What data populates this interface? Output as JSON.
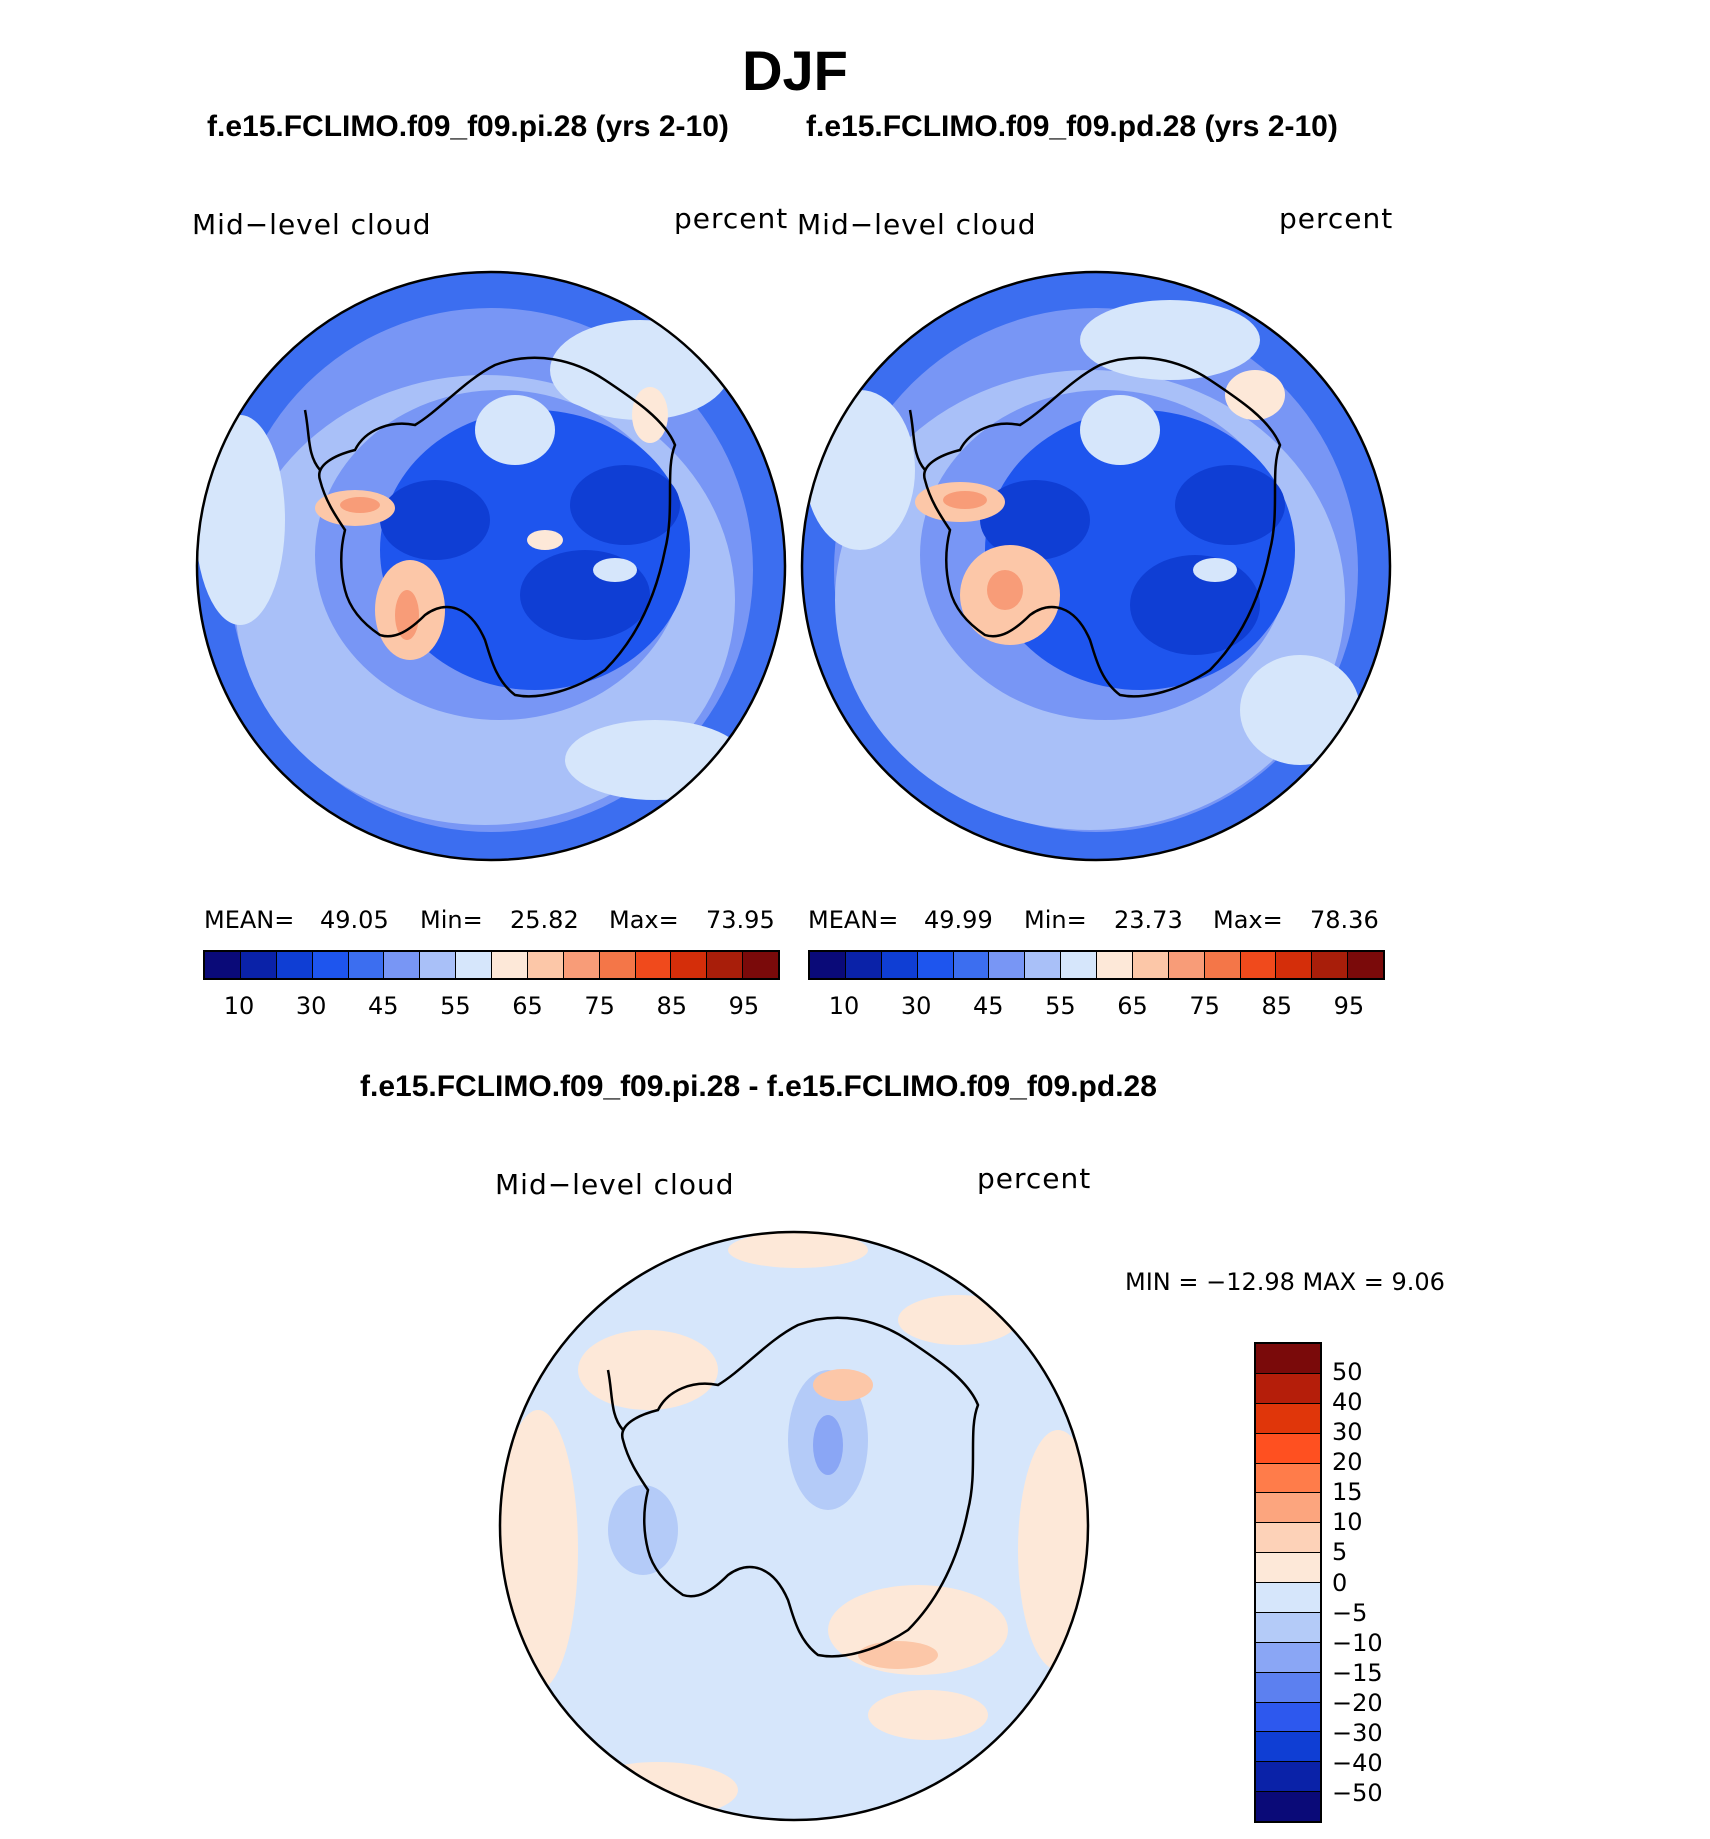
{
  "title": "DJF",
  "panels": [
    {
      "case_title": "f.e15.FCLIMO.f09_f09.pi.28 (yrs 2-10)",
      "variable": "Mid−level  cloud",
      "units": "percent",
      "stats": {
        "mean_label": "MEAN=",
        "mean": "49.05",
        "min_label": "Min=",
        "min": "25.82",
        "max_label": "Max=",
        "max": "73.95"
      }
    },
    {
      "case_title": "f.e15.FCLIMO.f09_f09.pd.28 (yrs 2-10)",
      "variable": "Mid−level  cloud",
      "units": "percent",
      "stats": {
        "mean_label": "MEAN=",
        "mean": "49.99",
        "min_label": "Min=",
        "min": "23.73",
        "max_label": "Max=",
        "max": "78.36"
      }
    }
  ],
  "abs_colorbar": {
    "colors": [
      "#0a0a78",
      "#0a22a8",
      "#0f3ed4",
      "#1e55ee",
      "#3c6ef0",
      "#7896f5",
      "#a9c0f8",
      "#d6e6fb",
      "#fde8d8",
      "#fcc7a8",
      "#f89c78",
      "#f47648",
      "#f04a1c",
      "#d42e0a",
      "#a81e0a",
      "#7a0a0a"
    ],
    "tick_labels": [
      "10",
      "30",
      "45",
      "55",
      "65",
      "75",
      "85",
      "95"
    ]
  },
  "diff_panel": {
    "title": "f.e15.FCLIMO.f09_f09.pi.28 - f.e15.FCLIMO.f09_f09.pd.28",
    "variable": "Mid−level  cloud",
    "units": "percent",
    "range_text": "MIN  =  −12.98  MAX  =     9.06",
    "colorbar": {
      "colors_top_to_bottom": [
        "#7a0a0a",
        "#b51e0a",
        "#e0360a",
        "#ff5020",
        "#ff7c4a",
        "#fca57e",
        "#fdd2b8",
        "#fde8d8",
        "#d6e6fb",
        "#b4cbf8",
        "#8aa6f5",
        "#5c80f0",
        "#2d58ee",
        "#0f3ed4",
        "#0a22a8",
        "#0a0a78"
      ],
      "tick_labels": [
        "50",
        "40",
        "30",
        "20",
        "15",
        "10",
        "5",
        "0",
        "−5",
        "−10",
        "−15",
        "−20",
        "−30",
        "−40",
        "−50"
      ]
    }
  },
  "field_colors": {
    "pi": {
      "outer": "#3c6ef0",
      "ring": "#7896f5",
      "mid": "#a9c0f8",
      "light": "#d6e6fb",
      "deep": "#1e55ee",
      "core": "#0f3ed4",
      "warm": "#fcc7a8",
      "warmer": "#f89c78"
    },
    "diff": {
      "base": "#d6e6fb",
      "warm": "#fde8d8",
      "warmer": "#fcc7a8",
      "cool": "#b4cbf8",
      "cooler": "#8aa6f5"
    }
  }
}
